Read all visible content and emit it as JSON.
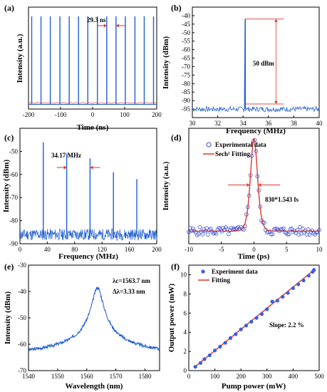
{
  "chart_data": [
    {
      "id": "a",
      "panel_label": "(a)",
      "type": "line",
      "xlabel": "Time (ns)",
      "ylabel": "Intensity (a.u.)",
      "xlim": [
        -200,
        200
      ],
      "ylim": [
        0,
        1.1
      ],
      "xticks": [
        "-200",
        "-100",
        "0",
        "100",
        "200"
      ],
      "annotation": "29.3 ns",
      "pulse_positions": [
        -190,
        -161,
        -132,
        -102,
        -73,
        -44,
        -15,
        15,
        44,
        73,
        102,
        132,
        161,
        190
      ],
      "pulse_height": 1.0,
      "color": "#1f5fd1",
      "secondary_color": "#e8312e"
    },
    {
      "id": "b",
      "panel_label": "(b)",
      "type": "line",
      "xlabel": "Frequency (MHz)",
      "ylabel": "Intensity (dBm)",
      "xlim": [
        30,
        40
      ],
      "ylim": [
        -100,
        -35
      ],
      "xticks": [
        "30",
        "32",
        "34",
        "36",
        "38",
        "40"
      ],
      "yticks": [
        "-95",
        "-90",
        "-85",
        "-80",
        "-75",
        "-70",
        "-65",
        "-60",
        "-55",
        "-50",
        "-45",
        "-40"
      ],
      "annotation": "50 dBm",
      "peak": {
        "x": 34.17,
        "y": -42
      },
      "noise_floor": -95,
      "color": "#1f5fd1"
    },
    {
      "id": "c",
      "panel_label": "(c)",
      "type": "line",
      "xlabel": "Frequency (MHz)",
      "ylabel": "Intensity (dBm)",
      "xlim": [
        0,
        200
      ],
      "ylim": [
        -90,
        -40
      ],
      "xticks": [
        "0",
        "40",
        "80",
        "120",
        "160",
        "200"
      ],
      "yticks": [
        "-90",
        "-80",
        "-70",
        "-60",
        "-50"
      ],
      "annotation": "34.17 MHz",
      "peaks": [
        {
          "x": 34.17,
          "y": -46
        },
        {
          "x": 68.34,
          "y": -51
        },
        {
          "x": 102.51,
          "y": -53
        },
        {
          "x": 136.68,
          "y": -59
        },
        {
          "x": 170.85,
          "y": -62
        }
      ],
      "noise_floor": -86,
      "color": "#1f5fd1"
    },
    {
      "id": "d",
      "panel_label": "(d)",
      "type": "scatter",
      "xlabel": "Time (ps)",
      "ylabel": "Intensity (a.u.)",
      "xlim": [
        -10,
        10
      ],
      "ylim": [
        0,
        1.1
      ],
      "xticks": [
        "-10",
        "-5",
        "0",
        "5",
        "10"
      ],
      "annotation": "830*1.543 fs",
      "legend": [
        "Experimental data",
        "Sech² Fitting"
      ],
      "fit_fwhm_ps": 1.28,
      "baseline": 0.12,
      "marker_color": "#3a4fd6",
      "fit_color": "#d83a2e"
    },
    {
      "id": "e",
      "panel_label": "(e)",
      "type": "line",
      "xlabel": "Wavelength (nm)",
      "ylabel": "Intensity (dBm)",
      "xlim": [
        1540,
        1585
      ],
      "ylim": [
        -70,
        -30
      ],
      "xticks": [
        "1540",
        "1550",
        "1560",
        "1570",
        "1580"
      ],
      "yticks": [
        "-70",
        "-60",
        "-50",
        "-40",
        "-30"
      ],
      "annotation_line1": "λc=1563.7 nm",
      "annotation_line2": "Δλ=3.33 nm",
      "center_nm": 1563.7,
      "peak_dbm": -38.5,
      "floor_dbm": -67,
      "color": "#1f5fd1"
    },
    {
      "id": "f",
      "panel_label": "(f)",
      "type": "scatter",
      "xlabel": "Pump power (mW)",
      "ylabel": "Output power (mW)",
      "xlim": [
        0,
        500
      ],
      "ylim": [
        0,
        11
      ],
      "xticks": [
        "0",
        "100",
        "200",
        "300",
        "400",
        "500"
      ],
      "yticks": [
        "0",
        "2",
        "4",
        "6",
        "8",
        "10"
      ],
      "legend": [
        "Experiment data",
        "Fitting"
      ],
      "annotation": "Slope:  2.2 %",
      "x": [
        25,
        45,
        60,
        80,
        100,
        120,
        140,
        160,
        180,
        200,
        220,
        240,
        260,
        280,
        300,
        320,
        340,
        360,
        380,
        400,
        420,
        440,
        460,
        475,
        480
      ],
      "y": [
        0.4,
        0.8,
        1.2,
        1.6,
        2.1,
        2.5,
        2.9,
        3.4,
        3.8,
        4.3,
        4.7,
        5.1,
        5.5,
        5.9,
        6.4,
        7.2,
        7.3,
        7.7,
        8.1,
        8.6,
        9.0,
        9.4,
        9.9,
        10.3,
        10.5
      ],
      "fit": {
        "slope": 0.0221,
        "intercept": -0.12
      },
      "marker_color": "#3a5fe0",
      "fit_color": "#e0302a"
    }
  ]
}
